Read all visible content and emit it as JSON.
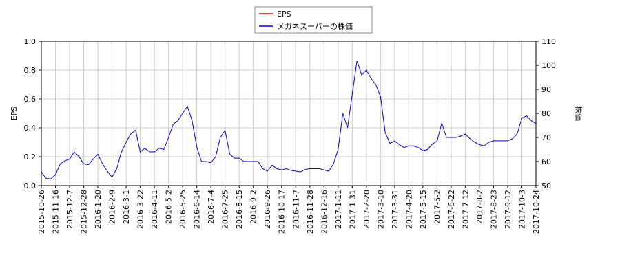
{
  "chart_data": {
    "type": "line",
    "ylabel": "EPS",
    "y2label": "株価",
    "categories": [
      "2015-10-26",
      null,
      null,
      "2015-11-16",
      null,
      null,
      "2015-12-7",
      null,
      null,
      "2015-12-28",
      null,
      null,
      "2016-1-20",
      null,
      null,
      "2016-2-9",
      null,
      null,
      "2016-3-1",
      null,
      null,
      "2016-3-22",
      null,
      null,
      "2016-4-11",
      null,
      null,
      "2016-5-2",
      null,
      null,
      "2016-5-25",
      null,
      null,
      "2016-6-14",
      null,
      null,
      "2016-7-4",
      null,
      null,
      "2016-7-25",
      null,
      null,
      "2016-8-15",
      null,
      null,
      "2016-9-2",
      null,
      null,
      "2016-9-26",
      null,
      null,
      "2016-10-17",
      null,
      null,
      "2016-11-7",
      null,
      null,
      "2016-11-28",
      null,
      null,
      "2016-12-16",
      null,
      null,
      "2017-1-11",
      null,
      null,
      "2017-1-31",
      null,
      null,
      "2017-2-20",
      null,
      null,
      "2017-3-10",
      null,
      null,
      "2017-3-31",
      null,
      null,
      "2017-4-20",
      null,
      null,
      "2017-5-15",
      null,
      null,
      "2017-6-2",
      null,
      null,
      "2017-6-22",
      null,
      null,
      "2017-7-12",
      null,
      null,
      "2017-8-2",
      null,
      null,
      "2017-8-23",
      null,
      null,
      "2017-9-12",
      null,
      null,
      "2017-10-3",
      null,
      null,
      "2017-10-24"
    ],
    "series": [
      {
        "name": "EPS",
        "color": "#ff0000",
        "values": [
          null,
          null,
          null,
          null,
          null,
          null,
          null,
          null,
          null,
          null,
          null,
          null,
          null,
          null,
          null,
          null,
          null,
          null,
          null,
          null,
          null,
          null,
          null,
          null,
          null,
          null,
          null,
          null,
          null,
          null,
          null,
          null,
          null,
          null,
          null,
          null,
          null,
          null,
          null,
          null,
          null,
          null,
          null,
          null,
          null,
          null,
          null,
          null,
          null,
          null,
          null,
          null,
          null,
          null,
          null,
          null,
          null,
          null,
          null,
          null,
          null,
          null,
          null,
          null,
          null,
          null,
          null,
          null,
          null,
          null,
          null,
          null,
          null,
          null,
          null,
          null,
          null,
          null,
          null,
          null,
          null,
          null,
          null,
          null,
          null,
          null,
          null,
          null,
          null,
          null,
          null,
          null,
          null,
          null,
          null,
          null,
          null,
          null,
          null,
          null,
          null,
          null,
          null,
          null,
          null,
          null
        ]
      },
      {
        "name": "メガネスーパーの株価",
        "color": "#0000cc",
        "axis": "y2",
        "values": [
          55.7,
          53,
          52.8,
          54.5,
          59,
          60.3,
          61,
          64,
          62,
          59,
          58.7,
          61,
          63,
          59,
          56,
          53.5,
          57,
          64,
          68,
          71.5,
          73,
          64,
          65.5,
          64,
          64,
          65.5,
          65,
          70,
          75.5,
          77,
          80,
          83,
          77,
          66,
          60,
          60,
          59.5,
          62,
          70,
          73,
          63,
          61.4,
          61.4,
          60,
          60,
          60,
          60,
          57,
          56,
          58.5,
          57,
          56.5,
          57,
          56.3,
          56,
          55.7,
          56.7,
          57,
          57,
          57,
          56.5,
          56,
          59,
          65,
          80,
          74,
          88,
          102,
          96,
          98,
          94.5,
          92,
          87,
          72,
          67.5,
          68.5,
          67,
          65.8,
          66.5,
          66.5,
          65.8,
          64.5,
          65,
          67.3,
          68.4,
          76,
          70,
          70,
          70,
          70.5,
          71.4,
          69.5,
          68,
          67,
          66.5,
          68,
          68.6,
          68.6,
          68.6,
          68.6,
          69.5,
          71.4,
          78,
          79,
          77,
          75.7
        ]
      }
    ],
    "ylim": [
      0,
      1
    ],
    "yticks": [
      {
        "value": 0,
        "label": "0.0"
      },
      0.2,
      0.4,
      0.6,
      0.8,
      {
        "value": 1,
        "label": "1.0"
      }
    ],
    "y2lim": [
      50,
      110
    ],
    "y2ticks": [
      50,
      60,
      70,
      80,
      90,
      100,
      110
    ],
    "grid": true,
    "legend": "top"
  }
}
